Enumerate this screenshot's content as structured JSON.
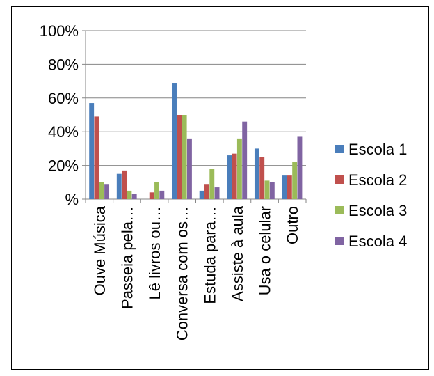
{
  "chart_data": {
    "type": "bar",
    "title": "",
    "xlabel": "",
    "ylabel": "",
    "ylim": [
      0,
      100
    ],
    "y_ticks": [
      {
        "value": 0,
        "label": "%"
      },
      {
        "value": 20,
        "label": "20%"
      },
      {
        "value": 40,
        "label": "40%"
      },
      {
        "value": 60,
        "label": "60%"
      },
      {
        "value": 80,
        "label": "80%"
      },
      {
        "value": 100,
        "label": "100%"
      }
    ],
    "categories": [
      "Ouve Música",
      "Passeia pela…",
      "Lê livros ou…",
      "Conversa com os…",
      "Estuda para…",
      "Assiste à aula",
      "Usa o celular",
      "Outro"
    ],
    "series": [
      {
        "name": "Escola 1",
        "color": "#4a7ebb",
        "values": [
          57,
          15,
          0,
          69,
          5,
          26,
          30,
          14
        ]
      },
      {
        "name": "Escola 2",
        "color": "#c0504d",
        "values": [
          49,
          17,
          4,
          50,
          9,
          27,
          25,
          14
        ]
      },
      {
        "name": "Escola 3",
        "color": "#9bbb59",
        "values": [
          10,
          5,
          10,
          50,
          18,
          36,
          11,
          22
        ]
      },
      {
        "name": "Escola 4",
        "color": "#8064a2",
        "values": [
          9,
          3,
          5,
          36,
          7,
          46,
          10,
          37
        ]
      }
    ],
    "grid": true,
    "legend_position": "right"
  }
}
